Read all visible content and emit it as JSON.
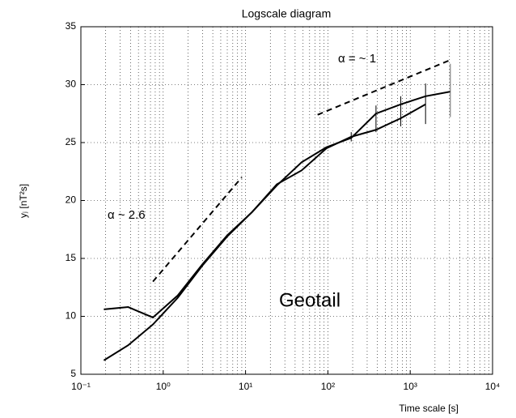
{
  "chart_data": {
    "type": "line",
    "title": "Logscale diagram",
    "xlabel": "Time scale [s]",
    "ylabel": "yⱼ [nT²s]",
    "xscale": "log",
    "grid": true,
    "x": [
      0.19,
      0.375,
      0.75,
      1.5,
      3,
      6,
      12,
      24,
      48,
      96,
      192,
      384,
      768,
      1536,
      3072
    ],
    "series": [
      {
        "color": "#000000",
        "values": [
          10.6,
          10.8,
          9.9,
          11.8,
          14.5,
          17,
          19,
          21.3,
          23.3,
          24.6,
          25.4,
          27.5,
          28.3,
          29,
          29.4
        ]
      },
      {
        "color": "#000000",
        "values": [
          6.2,
          7.5,
          9.3,
          11.6,
          14.4,
          16.9,
          19,
          21.4,
          22.6,
          24.5,
          25.5,
          26.1,
          27.1,
          28.3,
          null
        ]
      }
    ],
    "error_bars": {
      "x": [
        192,
        384,
        768,
        1536,
        3072
      ],
      "low": [
        25.1,
        25.9,
        26.4,
        26.6,
        27.2
      ],
      "high": [
        25.9,
        28.2,
        29.0,
        30.1,
        31.8
      ]
    },
    "reference_lines": [
      {
        "x": [
          0.75,
          9
        ],
        "y": [
          13,
          22
        ]
      },
      {
        "x": [
          75,
          3000
        ],
        "y": [
          27.4,
          32.1
        ]
      }
    ],
    "annotations": [
      "α ~ 2.6",
      "α = ~ 1",
      "Geotail"
    ],
    "xlim": [
      0.1,
      10000
    ],
    "xticks": [
      {
        "value": 0.1,
        "label": "10⁻¹"
      },
      {
        "value": 1,
        "label": "10⁰"
      },
      {
        "value": 10,
        "label": "10¹"
      },
      {
        "value": 100,
        "label": "10²"
      },
      {
        "value": 1000,
        "label": "10³"
      },
      {
        "value": 10000,
        "label": "10⁴"
      }
    ],
    "ylim": [
      5,
      35
    ],
    "yticks": [
      5,
      10,
      15,
      20,
      25,
      30,
      35
    ]
  }
}
